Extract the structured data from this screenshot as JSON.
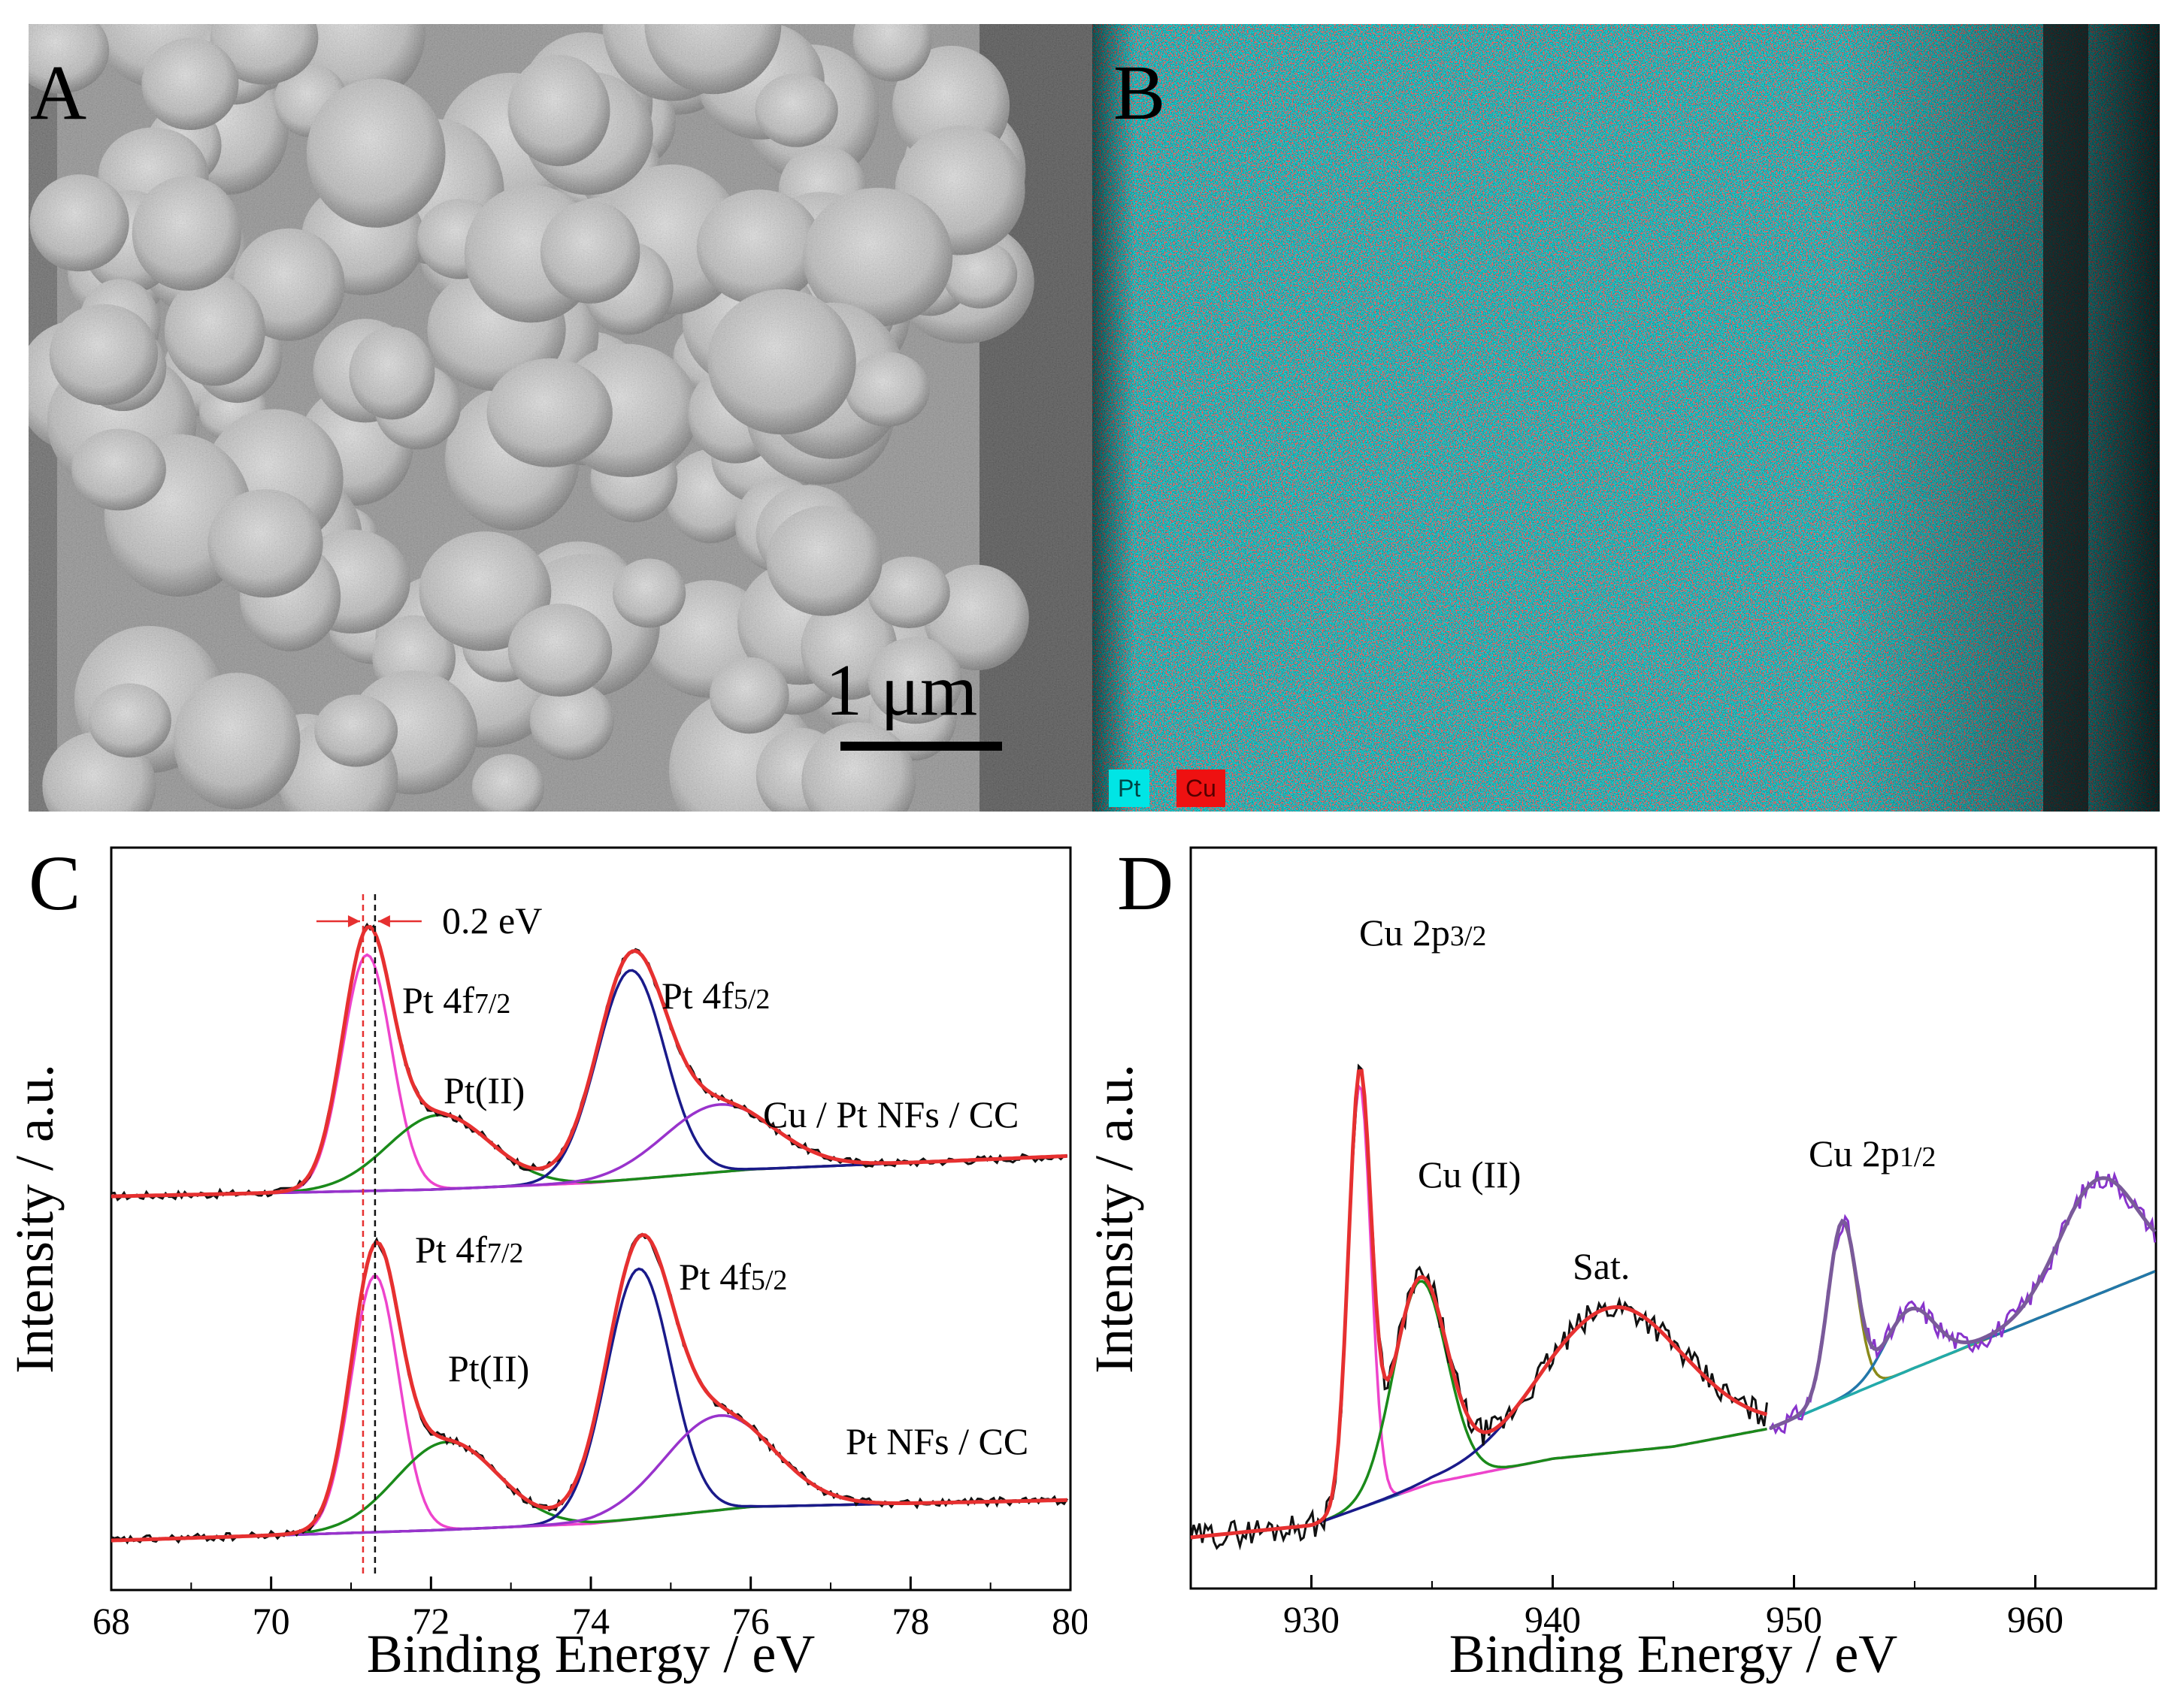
{
  "panels": {
    "a": {
      "letter": "A",
      "scale_bar": "1 μm"
    },
    "b": {
      "letter": "B",
      "legend": [
        {
          "label": "Pt",
          "color": "#00e5e5"
        },
        {
          "label": "Cu",
          "color": "#ee1111"
        }
      ]
    },
    "c": {
      "letter": "C"
    },
    "d": {
      "letter": "D"
    }
  },
  "chart_data": [
    {
      "type": "line",
      "panel": "C",
      "xlabel": "Binding Energy / eV",
      "ylabel": "Intensity / a.u.",
      "xlim": [
        68,
        80
      ],
      "ylim": [
        0,
        1
      ],
      "xticks": [
        68,
        70,
        72,
        74,
        76,
        78,
        80
      ],
      "annotations": {
        "shift": "0.2 eV",
        "shift_lines_ev": [
          71.15,
          71.3
        ],
        "top_peak1": "Pt 4f",
        "top_peak1_sub": "7/2",
        "top_pt2": "Pt(II)",
        "top_peak2": "Pt 4f",
        "top_peak2_sub": "5/2",
        "top_sample": "Cu / Pt NFs / CC",
        "bot_peak1": "Pt 4f",
        "bot_peak1_sub": "7/2",
        "bot_pt2": "Pt(II)",
        "bot_peak2": "Pt 4f",
        "bot_peak2_sub": "5/2",
        "bot_sample": "Pt NFs / CC"
      },
      "spectra": [
        {
          "sample": "Cu / Pt NFs / CC",
          "offset": 0.55,
          "baseline": [
            [
              68,
              0.0
            ],
            [
              72,
              0.01
            ],
            [
              74,
              0.02
            ],
            [
              76,
              0.04
            ],
            [
              80,
              0.06
            ]
          ],
          "components": [
            {
              "name": "Pt 4f7/2 Pt(0)",
              "center": 71.2,
              "height": 0.35,
              "fwhm": 0.72,
              "color": "#ee44cc"
            },
            {
              "name": "Pt(II) 4f7/2",
              "center": 72.1,
              "height": 0.11,
              "fwhm": 1.5,
              "color": "#1a8a1a"
            },
            {
              "name": "Pt 4f5/2 Pt(0)",
              "center": 74.5,
              "height": 0.31,
              "fwhm": 1.0,
              "color": "#1a1a8a"
            },
            {
              "name": "Pt(II) 4f5/2",
              "center": 75.6,
              "height": 0.1,
              "fwhm": 1.6,
              "color": "#9933cc"
            }
          ],
          "envelope_color": "#e63030",
          "raw_color": "#111111",
          "baseline_color": "#3366aa"
        },
        {
          "sample": "Pt NFs / CC",
          "offset": 0.04,
          "baseline": [
            [
              68,
              0.0
            ],
            [
              72,
              0.015
            ],
            [
              74,
              0.025
            ],
            [
              76,
              0.05
            ],
            [
              80,
              0.06
            ]
          ],
          "components": [
            {
              "name": "Pt 4f7/2 Pt(0)",
              "center": 71.3,
              "height": 0.38,
              "fwhm": 0.7,
              "color": "#ee44cc"
            },
            {
              "name": "Pt(II) 4f7/2",
              "center": 72.2,
              "height": 0.13,
              "fwhm": 1.5,
              "color": "#1a8a1a"
            },
            {
              "name": "Pt 4f5/2 Pt(0)",
              "center": 74.6,
              "height": 0.37,
              "fwhm": 0.95,
              "color": "#1a1a8a"
            },
            {
              "name": "Pt(II) 4f5/2",
              "center": 75.6,
              "height": 0.14,
              "fwhm": 1.6,
              "color": "#9933cc"
            }
          ],
          "envelope_color": "#e63030",
          "raw_color": "#111111",
          "baseline_color": "#3366aa"
        }
      ]
    },
    {
      "type": "line",
      "panel": "D",
      "xlabel": "Binding Energy / eV",
      "ylabel": "Intensity / a.u.",
      "xlim": [
        925,
        965
      ],
      "ylim": [
        0,
        1
      ],
      "xticks": [
        930,
        940,
        950,
        960
      ],
      "annotations": {
        "p32": "Cu 2p",
        "p32_sub": "3/2",
        "cu2": "Cu (II)",
        "sat": "Sat.",
        "p12": "Cu 2p",
        "p12_sub": "1/2"
      },
      "baseline": [
        [
          925,
          0.0
        ],
        [
          930,
          0.02
        ],
        [
          935,
          0.09
        ],
        [
          940,
          0.13
        ],
        [
          945,
          0.15
        ],
        [
          949,
          0.18
        ],
        [
          955,
          0.28
        ],
        [
          960,
          0.36
        ],
        [
          965,
          0.44
        ]
      ],
      "components": [
        {
          "name": "Cu 2p3/2",
          "center": 932.0,
          "height": 0.7,
          "fwhm": 1.1,
          "color": "#ee44cc"
        },
        {
          "name": "Cu(II)",
          "center": 934.5,
          "height": 0.34,
          "fwhm": 2.6,
          "color": "#1a8a1a"
        },
        {
          "name": "Sat.",
          "center": 942.5,
          "height": 0.24,
          "fwhm": 7.0,
          "color": "#1a1a8a"
        },
        {
          "name": "Cu 2p1/2",
          "center": 952.0,
          "height": 0.29,
          "fwhm": 1.4,
          "color": "#8a8a1a"
        },
        {
          "name": "Cu 2p1/2 Cu(II)",
          "center": 954.8,
          "height": 0.1,
          "fwhm": 2.4,
          "color": "#2277aa"
        },
        {
          "name": "Sat. 2p1/2",
          "center": 962.6,
          "height": 0.19,
          "fwhm": 3.8,
          "color": "#22aaaa"
        }
      ],
      "envelope_color": "#e63030",
      "raw_color": "#111111",
      "p12_raw_color": "#8833cc"
    }
  ]
}
